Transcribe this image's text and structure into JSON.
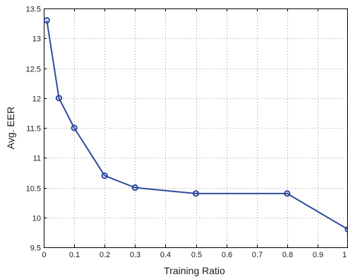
{
  "chart_data": {
    "type": "line",
    "title": "",
    "xlabel": "Training Ratio",
    "ylabel": "Avg. EER",
    "xlim": [
      0,
      1
    ],
    "ylim": [
      9.5,
      13.5
    ],
    "xticks": [
      0,
      0.1,
      0.2,
      0.3,
      0.4,
      0.5,
      0.6,
      0.7,
      0.8,
      0.9,
      1
    ],
    "xtick_labels": [
      "0",
      "0.1",
      "0.2",
      "0.3",
      "0.4",
      "0.5",
      "0.6",
      "0.7",
      "0.8",
      "0.9",
      "1"
    ],
    "yticks": [
      9.5,
      10,
      10.5,
      11,
      11.5,
      12,
      12.5,
      13,
      13.5
    ],
    "ytick_labels": [
      "9.5",
      "10",
      "10.5",
      "11",
      "11.5",
      "12",
      "12.5",
      "13",
      "13.5"
    ],
    "grid": true,
    "legend": "none",
    "series": [
      {
        "x": [
          0.01,
          0.05,
          0.1,
          0.2,
          0.3,
          0.5,
          0.8,
          1.0
        ],
        "y": [
          13.3,
          12.0,
          11.5,
          10.7,
          10.5,
          10.4,
          10.4,
          9.8
        ],
        "color": "#2f4a9e",
        "marker": "circle"
      }
    ]
  }
}
